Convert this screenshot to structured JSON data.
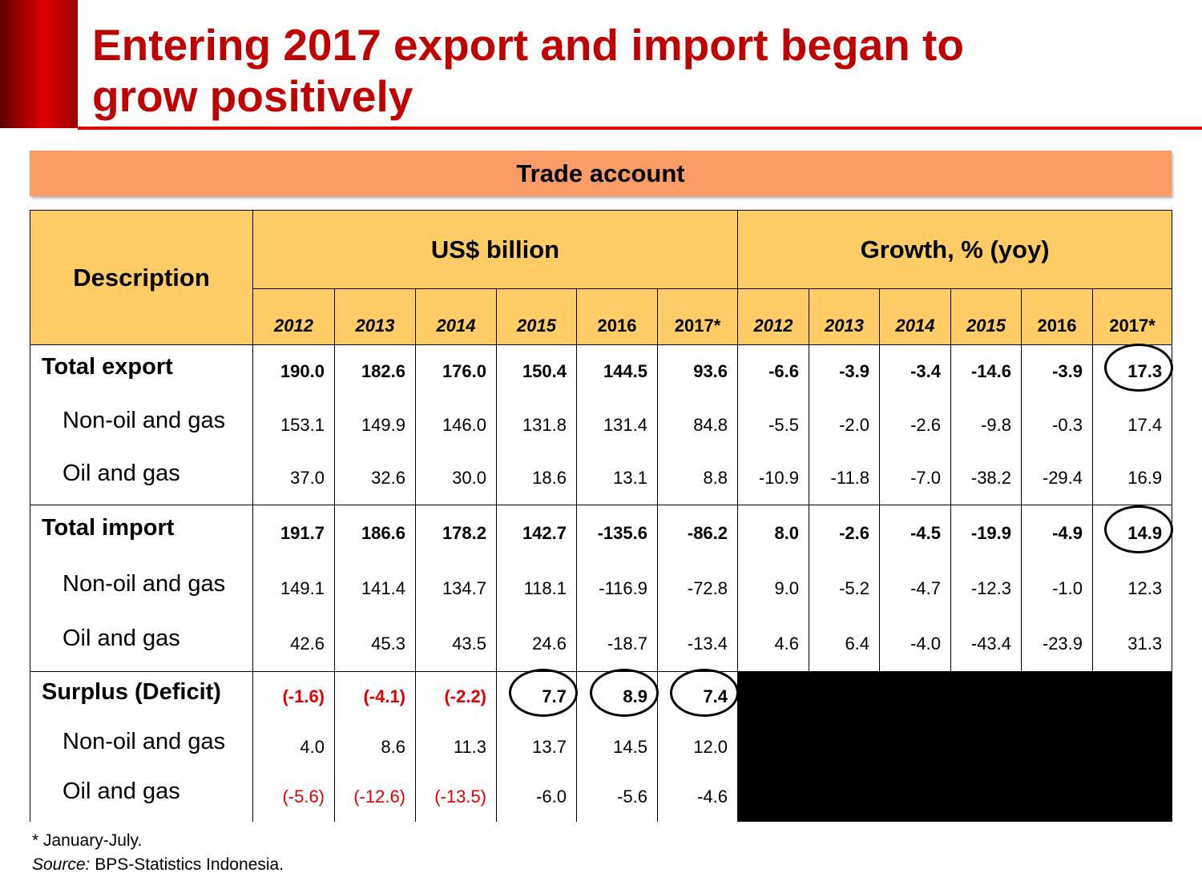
{
  "header": {
    "title_lines": [
      "Entering 2017 export and import began to",
      "grow positively"
    ]
  },
  "section_title": "Trade account",
  "table": {
    "description_header": "Description",
    "groups": [
      "US$ billion",
      "Growth, % (yoy)"
    ],
    "years": [
      [
        "2012",
        "2013",
        "2014",
        "2015",
        "2016",
        "2017*"
      ],
      [
        "2012",
        "2013",
        "2014",
        "2015",
        "2016",
        "2017*"
      ]
    ],
    "rows": [
      {
        "label": "Total export",
        "values": [
          "190.0",
          "182.6",
          "176.0",
          "150.4",
          "144.5",
          "93.6",
          "-6.6",
          "-3.9",
          "-3.4",
          "-14.6",
          "-3.9",
          "17.3"
        ]
      },
      {
        "label": "Non-oil and gas",
        "values": [
          "153.1",
          "149.9",
          "146.0",
          "131.8",
          "131.4",
          "84.8",
          "-5.5",
          "-2.0",
          "-2.6",
          "-9.8",
          "-0.3",
          "17.4"
        ]
      },
      {
        "label": "Oil and gas",
        "values": [
          "37.0",
          "32.6",
          "30.0",
          "18.6",
          "13.1",
          "8.8",
          "-10.9",
          "-11.8",
          "-7.0",
          "-38.2",
          "-29.4",
          "16.9"
        ]
      },
      {
        "label": "Total import",
        "values": [
          "191.7",
          "186.6",
          "178.2",
          "142.7",
          "-135.6",
          "-86.2",
          "8.0",
          "-2.6",
          "-4.5",
          "-19.9",
          "-4.9",
          "14.9"
        ]
      },
      {
        "label": "Non-oil and gas",
        "values": [
          "149.1",
          "141.4",
          "134.7",
          "118.1",
          "-116.9",
          "-72.8",
          "9.0",
          "-5.2",
          "-4.7",
          "-12.3",
          "-1.0",
          "12.3"
        ]
      },
      {
        "label": "Oil and gas",
        "values": [
          "42.6",
          "45.3",
          "43.5",
          "24.6",
          "-18.7",
          "-13.4",
          "4.6",
          "6.4",
          "-4.0",
          "-43.4",
          "-23.9",
          "31.3"
        ]
      },
      {
        "label": "Surplus (Deficit)",
        "values": [
          "(-1.6)",
          "(-4.1)",
          "(-2.2)",
          "7.7",
          "8.9",
          "7.4"
        ]
      },
      {
        "label": "Non-oil and gas",
        "values": [
          "4.0",
          "8.6",
          "11.3",
          "13.7",
          "14.5",
          "12.0"
        ]
      },
      {
        "label": "Oil and gas",
        "values": [
          "(-5.6)",
          "(-12.6)",
          "(-13.5)",
          "-6.0",
          "-5.6",
          "-4.6"
        ]
      }
    ]
  },
  "footnotes": {
    "note": "* January-July.",
    "source_label": "Source:",
    "source_text": "BPS-Statistics Indonesia."
  }
}
